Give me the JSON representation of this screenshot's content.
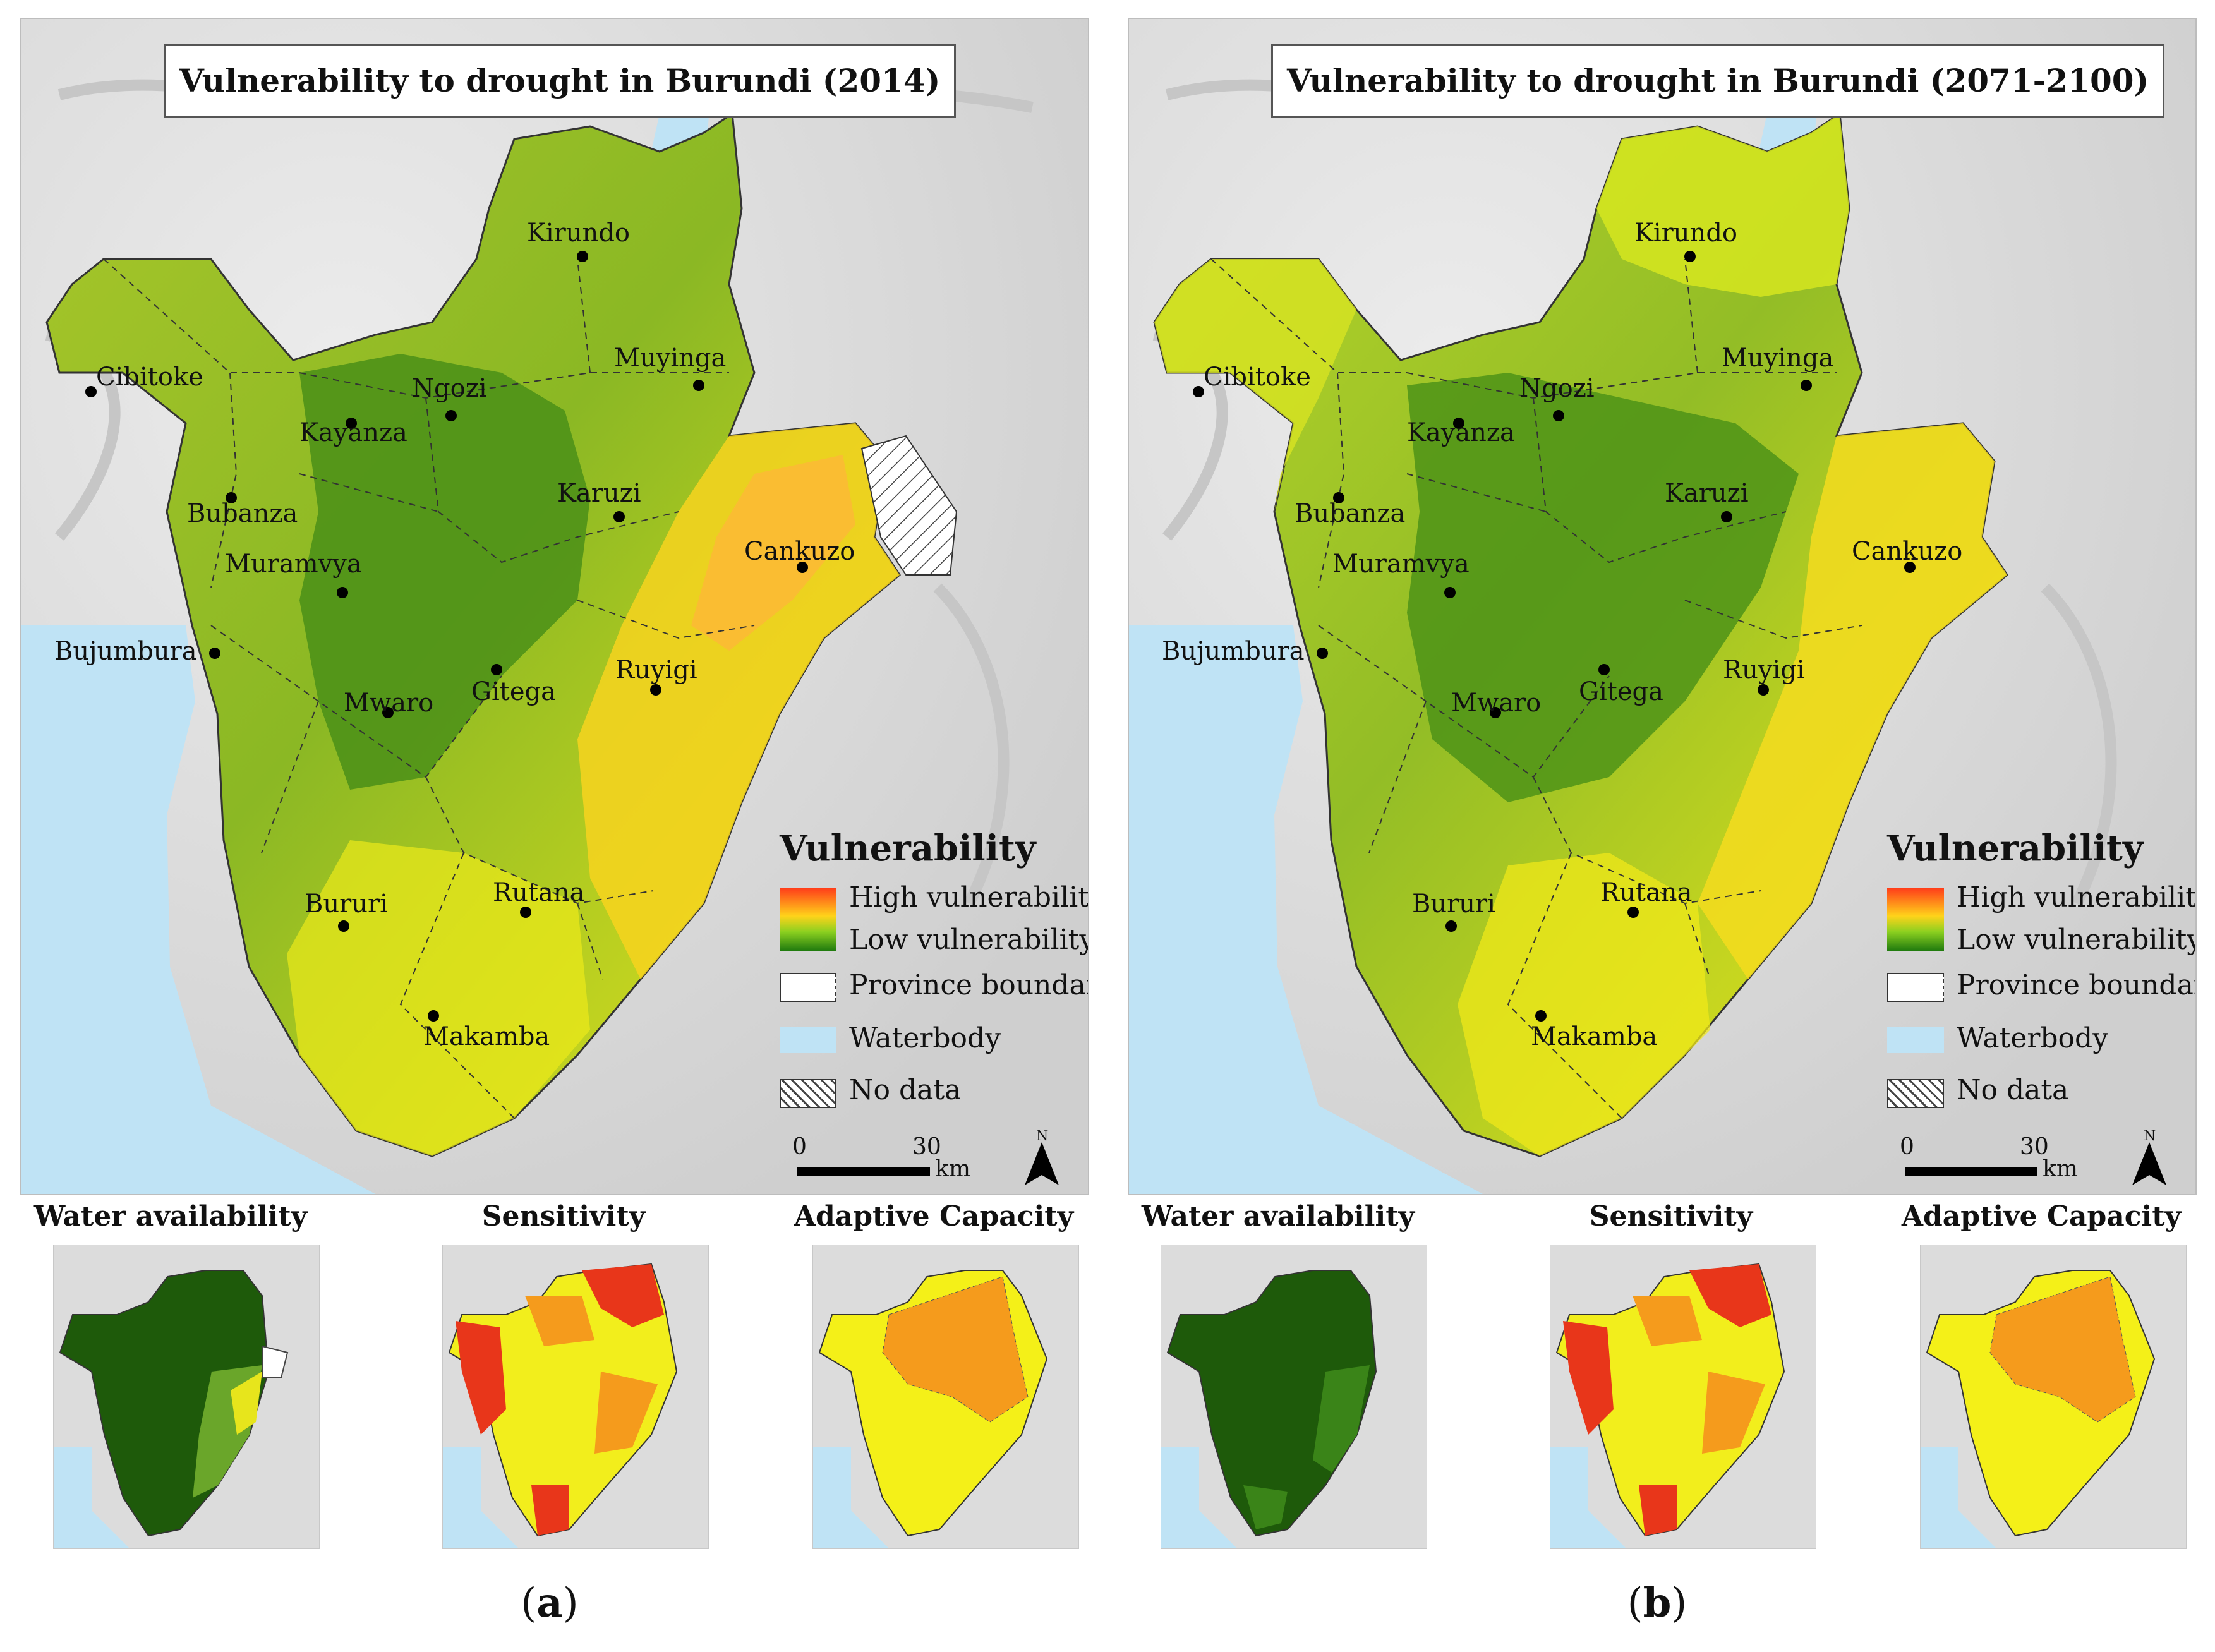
{
  "figure": {
    "panels": [
      {
        "id": "a",
        "title": "Vulnerability to drought in Burundi (2014)",
        "letter": "a",
        "insets": [
          "Water availability",
          "Sensitivity",
          "Adaptive Capacity"
        ]
      },
      {
        "id": "b",
        "title": "Vulnerability to drought in Burundi (2071-2100)",
        "letter": "b",
        "insets": [
          "Water availability",
          "Sensitivity",
          "Adaptive Capacity"
        ]
      }
    ],
    "cities": [
      "Kirundo",
      "Cibitoke",
      "Ngozi",
      "Muyinga",
      "Kayanza",
      "Bubanza",
      "Karuzi",
      "Cankuzo",
      "Muramvya",
      "Bujumbura",
      "Ruyigi",
      "Gitega",
      "Mwaro",
      "Rutana",
      "Bururi",
      "Makamba"
    ],
    "legend": {
      "title": "Vulnerability",
      "high": "High vulnerability",
      "low": "Low vulnerability",
      "province_boundary": "Province boundary",
      "waterbody": "Waterbody",
      "no_data": "No data"
    },
    "scale": {
      "start": "0",
      "end": "30",
      "unit": "km"
    },
    "north": "N",
    "colors": {
      "water": "#bfe3f5",
      "terrain": "#dedede",
      "high": "#ff4a1a",
      "mid_high": "#ffb020",
      "mid": "#f4f018",
      "mid_low": "#c9e12a",
      "low": "#2a8a10",
      "dark_green": "#1e5a0a",
      "orange": "#f59b1c",
      "red": "#e8361a"
    }
  }
}
